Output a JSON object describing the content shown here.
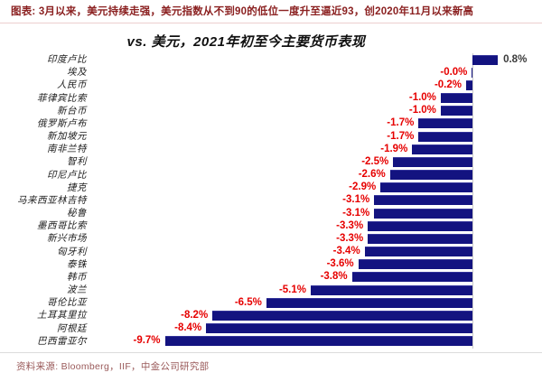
{
  "header": {
    "caption": "图表: 3月以来，美元持续走强，美元指数从不到90的低位一度升至逼近93，创2020年11月以来新高"
  },
  "chart_data": {
    "type": "bar",
    "orientation": "horizontal",
    "title": "vs. 美元，2021年初至今主要货币表现",
    "categories": [
      "印度卢比",
      "埃及",
      "人民币",
      "菲律宾比索",
      "新台币",
      "俄罗斯卢布",
      "新加坡元",
      "南非兰特",
      "智利",
      "印尼卢比",
      "捷克",
      "马来西亚林吉特",
      "秘鲁",
      "墨西哥比索",
      "新兴市场",
      "匈牙利",
      "泰铢",
      "韩币",
      "波兰",
      "哥伦比亚",
      "土耳其里拉",
      "阿根廷",
      "巴西雷亚尔"
    ],
    "values": [
      0.8,
      -0.0,
      -0.2,
      -1.0,
      -1.0,
      -1.7,
      -1.7,
      -1.9,
      -2.5,
      -2.6,
      -2.9,
      -3.1,
      -3.1,
      -3.3,
      -3.3,
      -3.4,
      -3.6,
      -3.8,
      -5.1,
      -6.5,
      -8.2,
      -8.4,
      -9.7
    ],
    "value_labels": [
      "0.8%",
      "-0.0%",
      "-0.2%",
      "-1.0%",
      "-1.0%",
      "-1.7%",
      "-1.7%",
      "-1.9%",
      "-2.5%",
      "-2.6%",
      "-2.9%",
      "-3.1%",
      "-3.1%",
      "-3.3%",
      "-3.3%",
      "-3.4%",
      "-3.6%",
      "-3.8%",
      "-5.1%",
      "-6.5%",
      "-8.2%",
      "-8.4%",
      "-9.7%"
    ],
    "unit": "%",
    "xlim": [
      -12,
      2.2
    ],
    "grid": false,
    "legend": "none",
    "bar_color": "#131380",
    "negative_label_color": "#e60000",
    "positive_label_color": "#3a3a3a",
    "axis_line_color": "#c9c9c9"
  },
  "footer": {
    "source": "资料来源: Bloomberg，IIF，中金公司研究部"
  }
}
